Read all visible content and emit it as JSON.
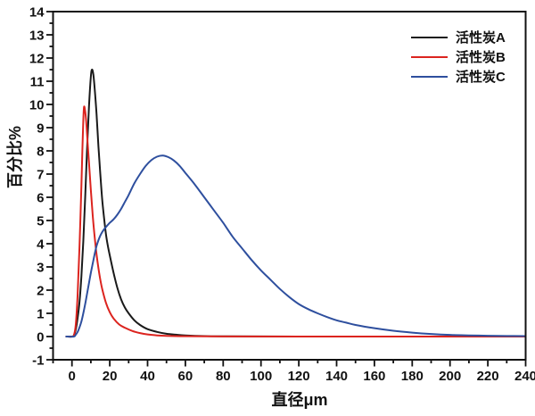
{
  "chart_data": {
    "type": "line",
    "title": "",
    "xlabel": "直径μm",
    "ylabel": "百分比%",
    "grid": false,
    "legend": {
      "position": "top-right",
      "border": false
    },
    "x_axis": {
      "min": -10,
      "max": 240,
      "major_ticks": [
        0,
        20,
        40,
        60,
        80,
        100,
        120,
        140,
        160,
        180,
        200,
        220,
        240
      ],
      "minor_step": 10
    },
    "y_axis": {
      "min": -1,
      "max": 14,
      "major_ticks": [
        -1,
        0,
        1,
        2,
        3,
        4,
        5,
        6,
        7,
        8,
        9,
        10,
        11,
        12,
        13,
        14
      ],
      "minor_step": 0.5
    },
    "series": [
      {
        "name": "活性炭A",
        "color": "#1a1a1a",
        "peak": {
          "x": 10.6,
          "y": 11.5
        },
        "points": [
          [
            -3,
            0
          ],
          [
            0,
            0
          ],
          [
            1,
            0.05
          ],
          [
            2,
            0.3
          ],
          [
            3,
            0.8
          ],
          [
            4,
            1.5
          ],
          [
            5,
            2.6
          ],
          [
            6,
            4.1
          ],
          [
            7,
            6.0
          ],
          [
            8,
            8.1
          ],
          [
            9,
            9.9
          ],
          [
            10,
            11.2
          ],
          [
            10.6,
            11.5
          ],
          [
            11.3,
            11.3
          ],
          [
            12,
            10.7
          ],
          [
            13,
            9.6
          ],
          [
            14,
            8.2
          ],
          [
            15,
            7.0
          ],
          [
            16,
            5.9
          ],
          [
            17,
            5.1
          ],
          [
            18,
            4.4
          ],
          [
            19,
            3.9
          ],
          [
            20,
            3.5
          ],
          [
            22,
            2.75
          ],
          [
            24,
            2.1
          ],
          [
            26,
            1.6
          ],
          [
            28,
            1.25
          ],
          [
            30,
            1.0
          ],
          [
            33,
            0.7
          ],
          [
            36,
            0.5
          ],
          [
            40,
            0.32
          ],
          [
            45,
            0.2
          ],
          [
            50,
            0.12
          ],
          [
            55,
            0.08
          ],
          [
            60,
            0.05
          ],
          [
            70,
            0.02
          ],
          [
            80,
            0.01
          ],
          [
            120,
            0
          ],
          [
            180,
            0
          ],
          [
            240,
            0
          ]
        ]
      },
      {
        "name": "活性炭B",
        "color": "#dc241f",
        "peak": {
          "x": 6.4,
          "y": 9.9
        },
        "points": [
          [
            -3,
            0
          ],
          [
            0,
            0
          ],
          [
            1,
            0.05
          ],
          [
            2,
            0.5
          ],
          [
            3,
            1.8
          ],
          [
            4,
            3.9
          ],
          [
            5,
            6.5
          ],
          [
            5.5,
            8.0
          ],
          [
            6,
            9.3
          ],
          [
            6.4,
            9.9
          ],
          [
            7,
            9.7
          ],
          [
            7.5,
            9.3
          ],
          [
            8,
            8.7
          ],
          [
            9,
            7.5
          ],
          [
            10,
            6.3
          ],
          [
            11,
            5.2
          ],
          [
            12,
            4.3
          ],
          [
            13,
            3.55
          ],
          [
            14,
            2.95
          ],
          [
            15,
            2.45
          ],
          [
            16,
            2.05
          ],
          [
            18,
            1.45
          ],
          [
            20,
            1.05
          ],
          [
            22,
            0.78
          ],
          [
            25,
            0.52
          ],
          [
            28,
            0.38
          ],
          [
            32,
            0.24
          ],
          [
            36,
            0.15
          ],
          [
            40,
            0.09
          ],
          [
            45,
            0.05
          ],
          [
            50,
            0.03
          ],
          [
            60,
            0.015
          ],
          [
            80,
            0.005
          ],
          [
            120,
            0
          ],
          [
            180,
            0
          ],
          [
            240,
            0
          ]
        ]
      },
      {
        "name": "活性炭C",
        "color": "#2e4f9e",
        "peak": {
          "x": 48,
          "y": 7.8
        },
        "points": [
          [
            -3,
            0
          ],
          [
            1,
            0
          ],
          [
            2,
            0.08
          ],
          [
            3,
            0.2
          ],
          [
            4,
            0.4
          ],
          [
            5,
            0.65
          ],
          [
            6,
            1.0
          ],
          [
            7,
            1.4
          ],
          [
            8,
            1.85
          ],
          [
            9,
            2.3
          ],
          [
            10,
            2.75
          ],
          [
            11,
            3.15
          ],
          [
            12,
            3.55
          ],
          [
            13,
            3.9
          ],
          [
            14,
            4.15
          ],
          [
            15,
            4.35
          ],
          [
            16,
            4.5
          ],
          [
            17,
            4.62
          ],
          [
            18,
            4.72
          ],
          [
            20,
            4.9
          ],
          [
            22,
            5.05
          ],
          [
            24,
            5.25
          ],
          [
            26,
            5.5
          ],
          [
            28,
            5.8
          ],
          [
            30,
            6.1
          ],
          [
            33,
            6.6
          ],
          [
            36,
            7.0
          ],
          [
            39,
            7.35
          ],
          [
            42,
            7.6
          ],
          [
            45,
            7.75
          ],
          [
            48,
            7.8
          ],
          [
            51,
            7.73
          ],
          [
            54,
            7.58
          ],
          [
            57,
            7.35
          ],
          [
            60,
            7.05
          ],
          [
            65,
            6.55
          ],
          [
            70,
            6.0
          ],
          [
            75,
            5.45
          ],
          [
            80,
            4.9
          ],
          [
            85,
            4.3
          ],
          [
            90,
            3.8
          ],
          [
            95,
            3.3
          ],
          [
            100,
            2.85
          ],
          [
            105,
            2.45
          ],
          [
            110,
            2.05
          ],
          [
            115,
            1.7
          ],
          [
            120,
            1.4
          ],
          [
            125,
            1.18
          ],
          [
            130,
            1.0
          ],
          [
            135,
            0.84
          ],
          [
            140,
            0.7
          ],
          [
            145,
            0.6
          ],
          [
            150,
            0.5
          ],
          [
            160,
            0.36
          ],
          [
            170,
            0.25
          ],
          [
            180,
            0.17
          ],
          [
            190,
            0.11
          ],
          [
            200,
            0.07
          ],
          [
            210,
            0.05
          ],
          [
            220,
            0.035
          ],
          [
            230,
            0.025
          ],
          [
            240,
            0.02
          ]
        ]
      }
    ]
  }
}
